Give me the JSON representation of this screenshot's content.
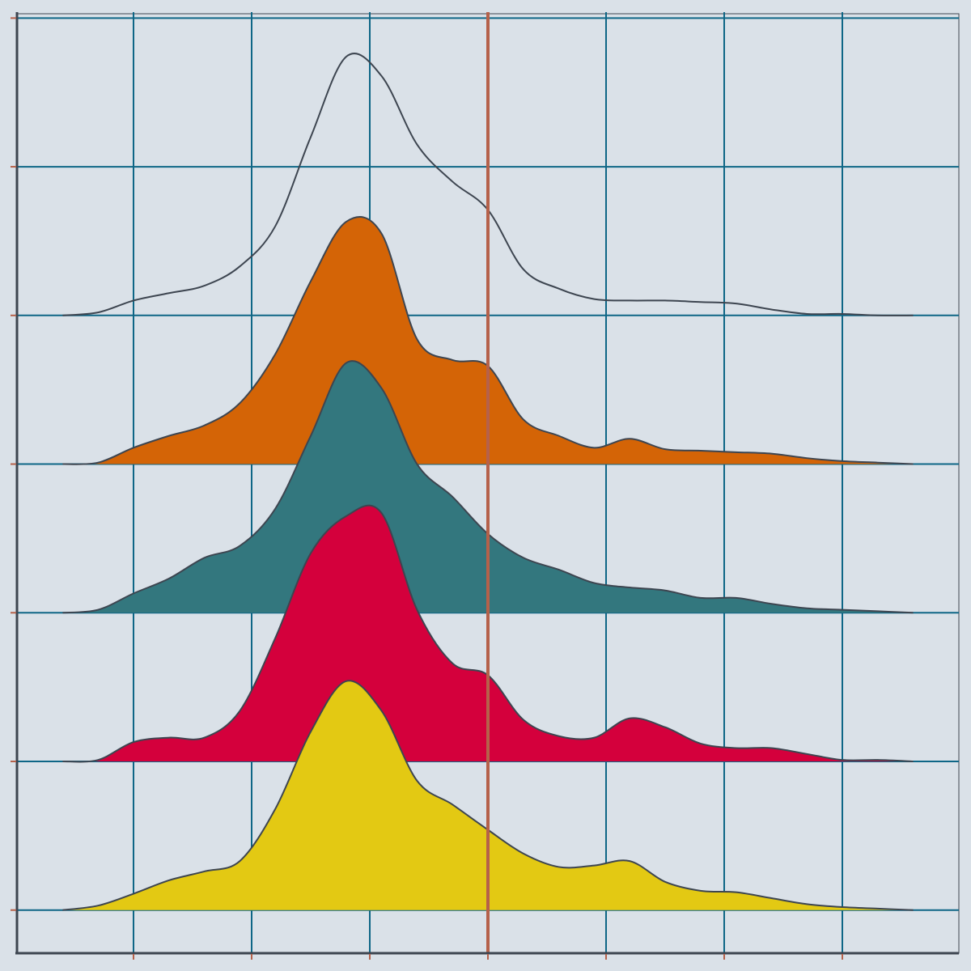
{
  "chart_data": {
    "type": "ridgeline",
    "x": [
      -0.6,
      -0.3,
      0,
      0.3,
      0.6,
      0.9,
      1.2,
      1.5,
      1.8,
      2.1,
      2.4,
      2.7,
      3.0,
      3.3,
      3.6,
      3.9,
      4.2,
      4.5,
      4.8,
      5.1,
      5.4,
      5.7,
      6.0,
      6.3,
      6.6
    ],
    "series": [
      {
        "color": "none",
        "values": [
          0,
          0.02,
          0.1,
          0.15,
          0.2,
          0.33,
          0.6,
          1.2,
          1.74,
          1.61,
          1.15,
          0.9,
          0.71,
          0.31,
          0.18,
          0.11,
          0.1,
          0.1,
          0.09,
          0.08,
          0.04,
          0.01,
          0.01,
          0,
          0
        ]
      },
      {
        "color": "#d46406",
        "values": [
          0,
          0.01,
          0.11,
          0.19,
          0.26,
          0.41,
          0.74,
          1.23,
          1.63,
          1.55,
          0.84,
          0.7,
          0.66,
          0.3,
          0.19,
          0.11,
          0.17,
          0.1,
          0.09,
          0.08,
          0.07,
          0.04,
          0.02,
          0.01,
          0
        ]
      },
      {
        "color": "#33777e",
        "values": [
          0,
          0.02,
          0.13,
          0.23,
          0.37,
          0.45,
          0.7,
          1.19,
          1.68,
          1.51,
          1.0,
          0.78,
          0.53,
          0.37,
          0.29,
          0.2,
          0.17,
          0.15,
          0.1,
          0.1,
          0.06,
          0.03,
          0.02,
          0.01,
          0
        ]
      },
      {
        "color": "#d4003c",
        "values": [
          0,
          0.01,
          0.13,
          0.16,
          0.16,
          0.34,
          0.83,
          1.4,
          1.65,
          1.67,
          1.02,
          0.66,
          0.58,
          0.28,
          0.17,
          0.16,
          0.29,
          0.23,
          0.12,
          0.09,
          0.09,
          0.05,
          0.01,
          0.01,
          0
        ]
      },
      {
        "color": "#e3c913",
        "values": [
          0,
          0.03,
          0.11,
          0.2,
          0.26,
          0.33,
          0.68,
          1.2,
          1.54,
          1.34,
          0.87,
          0.71,
          0.54,
          0.38,
          0.29,
          0.3,
          0.33,
          0.19,
          0.13,
          0.12,
          0.08,
          0.04,
          0.02,
          0.01,
          0
        ]
      }
    ],
    "xlim": [
      -1,
      7
    ],
    "ylim": [
      -0.29,
      6.04
    ],
    "xticks": [
      0,
      1,
      2,
      3,
      4,
      5,
      6
    ],
    "yticks": [
      0,
      1,
      2,
      3,
      4,
      5,
      6
    ],
    "grid": true,
    "grid_color": "#0e6686",
    "tick_color": "#b5614a",
    "line_color": "#3d4550",
    "vline": 3,
    "vline_color": "#b5614a"
  }
}
